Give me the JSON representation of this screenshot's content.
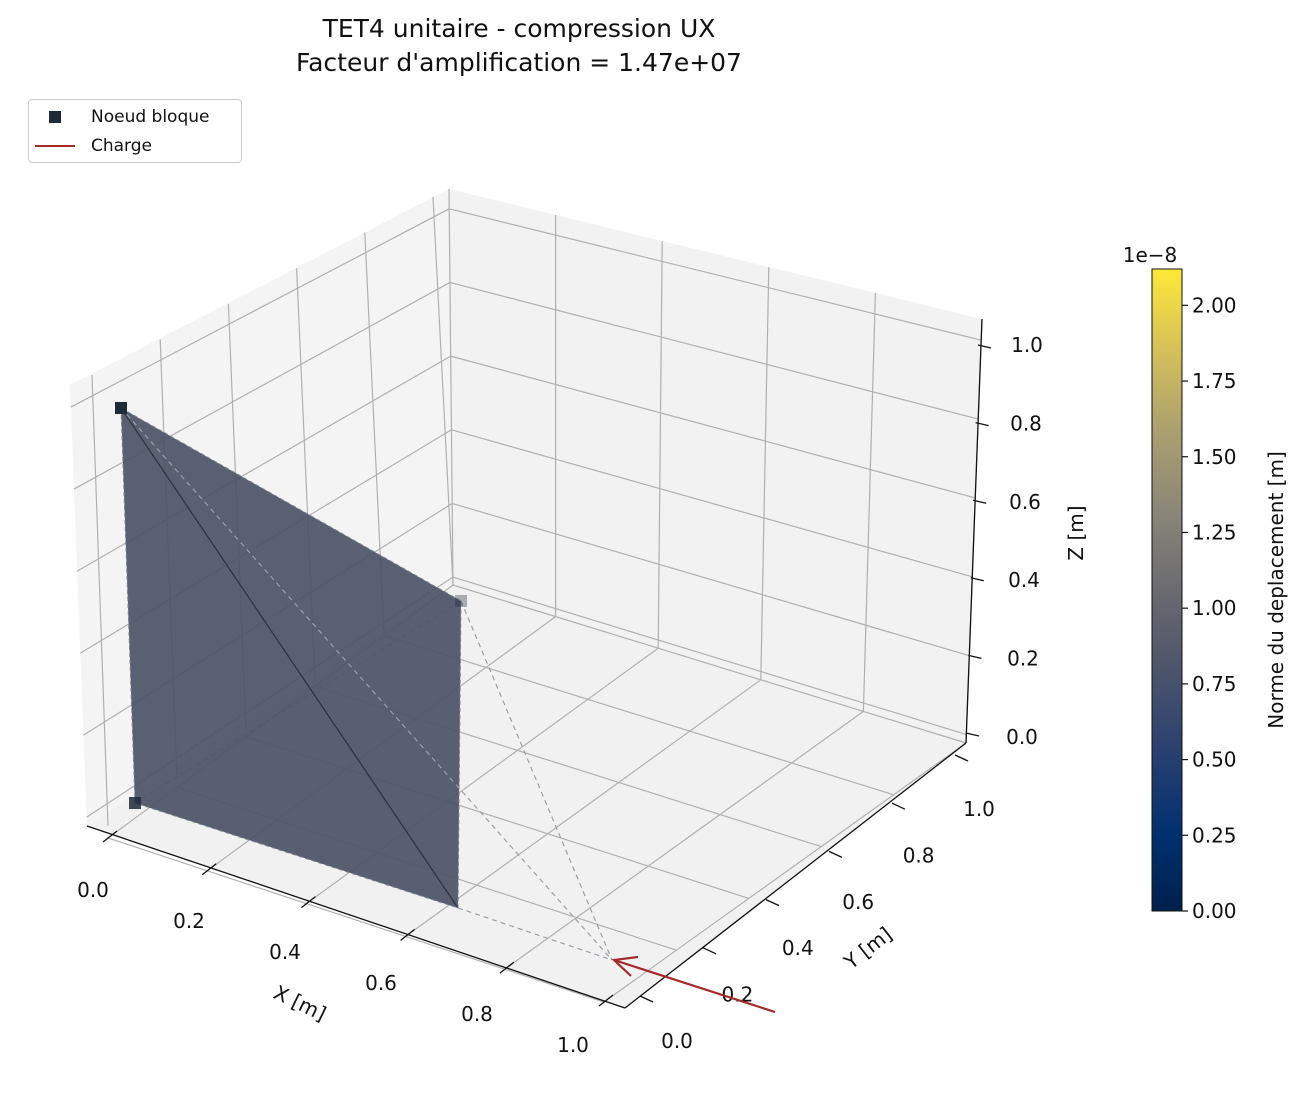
{
  "chart_data": {
    "type": "3d-mesh",
    "title": "TET4 unitaire - compression UX",
    "subtitle": "Facteur d'amplification = 1.47e+07",
    "xlabel": "X [m]",
    "ylabel": "Y [m]",
    "zlabel": "Z [m]",
    "x_ticks": [
      "0.0",
      "0.2",
      "0.4",
      "0.6",
      "0.8",
      "1.0"
    ],
    "y_ticks": [
      "0.0",
      "0.2",
      "0.4",
      "0.6",
      "0.8",
      "1.0"
    ],
    "z_ticks": [
      "0.0",
      "0.2",
      "0.4",
      "0.6",
      "0.8",
      "1.0"
    ],
    "xlim": [
      0,
      1
    ],
    "ylim": [
      0,
      1
    ],
    "zlim": [
      0,
      1
    ],
    "grid": true,
    "legend": {
      "position": "top-left",
      "entries": [
        {
          "label": "Noeud bloque",
          "marker": "square",
          "color": "#1e2a36"
        },
        {
          "label": "Charge",
          "marker": "line",
          "color": "#a52a2a"
        }
      ]
    },
    "nodes": [
      {
        "x": 0.0,
        "y": 0.0,
        "z": 0.0,
        "blocked": true,
        "displacement_norm": 0.0
      },
      {
        "x": 1.0,
        "y": 0.0,
        "z": 0.0,
        "blocked": false,
        "displacement_norm": 2.12e-08
      },
      {
        "x": 0.0,
        "y": 1.0,
        "z": 0.0,
        "blocked": true,
        "displacement_norm": 0.0
      },
      {
        "x": 0.0,
        "y": 0.0,
        "z": 1.0,
        "blocked": true,
        "displacement_norm": 0.0
      }
    ],
    "load": {
      "node": 1,
      "direction": "-X",
      "color": "#a52a2a"
    },
    "colorbar": {
      "label": "Norme du deplacement [m]",
      "multiplier": "1e−8",
      "range": [
        0,
        2.12
      ],
      "ticks": [
        "0.00",
        "0.25",
        "0.50",
        "0.75",
        "1.00",
        "1.25",
        "1.50",
        "1.75",
        "2.00"
      ],
      "colormap": "cividis"
    },
    "face_color": "#4b5466"
  }
}
